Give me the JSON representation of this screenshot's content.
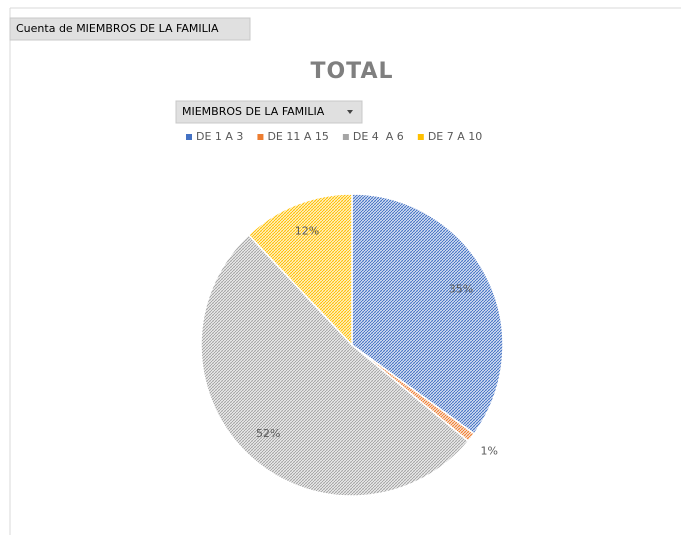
{
  "chart_data": {
    "type": "pie",
    "title": "TOTAL",
    "value_field": "Cuenta de MIEMBROS DE LA FAMILIA",
    "category_field": "MIEMBROS DE LA FAMILIA",
    "categories": [
      "DE 1 A 3",
      "DE 11 A 15",
      "DE 4  A 6",
      "DE 7 A 10"
    ],
    "values": [
      35,
      1,
      52,
      12
    ],
    "value_labels": [
      "35%",
      "1%",
      "52%",
      "12%"
    ],
    "colors": [
      "#4472c4",
      "#ed7d31",
      "#a5a5a5",
      "#ffc000"
    ],
    "legend": "top"
  }
}
